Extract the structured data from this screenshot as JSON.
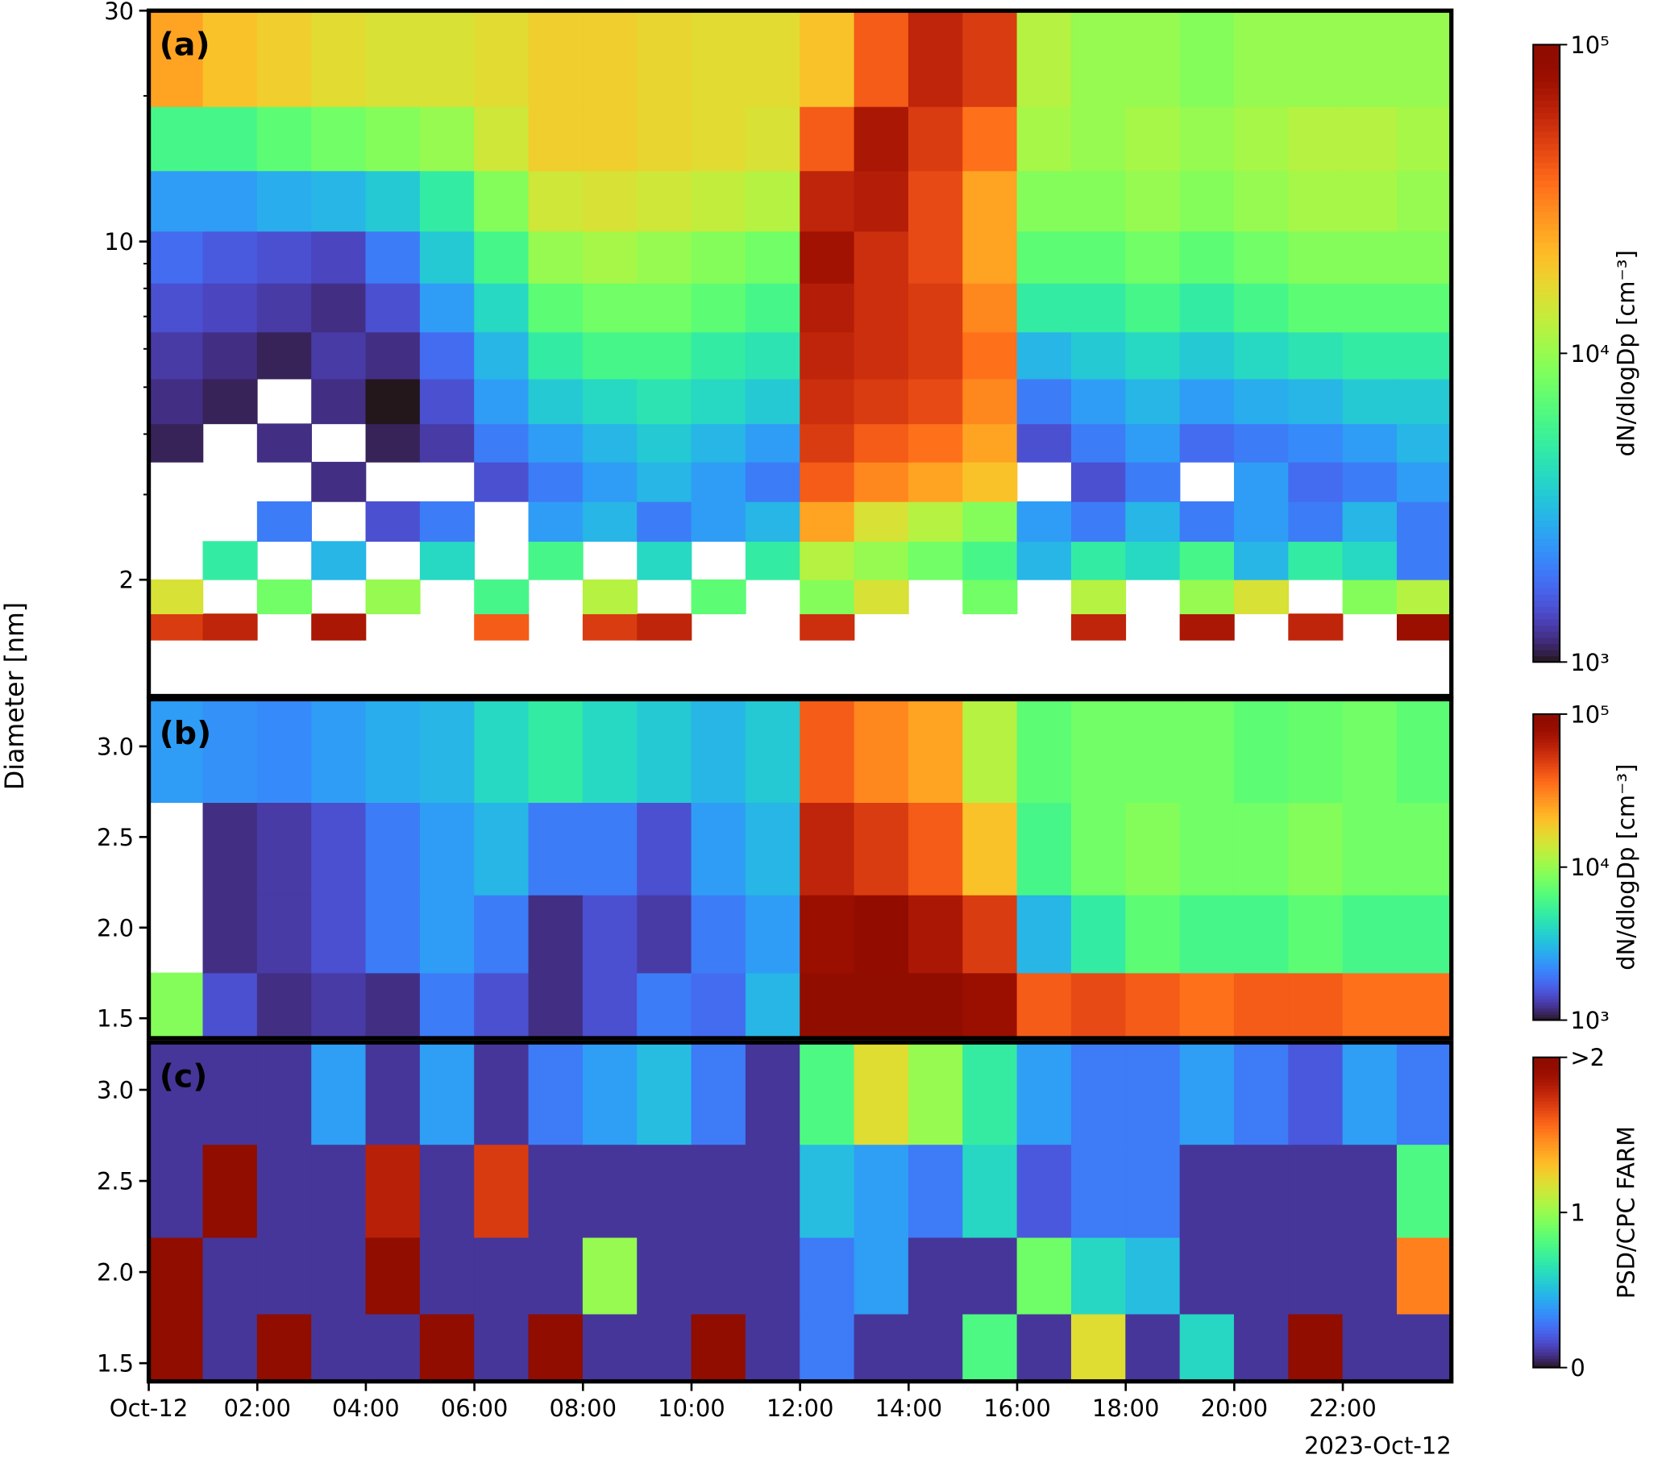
{
  "chart_data": [
    {
      "type": "heatmap",
      "panel_label": "(a)",
      "ylabel": "Diameter [nm]",
      "yscale": "log",
      "colormap": "turbo",
      "xlim": [
        0,
        24
      ],
      "ylim": [
        1.15,
        30
      ],
      "yticks": [
        2,
        10,
        30
      ],
      "yminor": [
        3,
        4,
        5,
        6,
        7,
        8,
        9,
        20
      ],
      "x_edges": [
        0,
        1,
        2,
        3,
        4,
        5,
        6,
        7,
        8,
        9,
        10,
        11,
        12,
        13,
        14,
        15,
        16,
        17,
        18,
        19,
        20,
        21,
        22,
        23,
        24
      ],
      "y_edges": [
        1.5,
        1.7,
        2,
        2.4,
        2.9,
        3.5,
        4.2,
        5.2,
        6.5,
        8.2,
        10.5,
        14,
        19,
        30
      ],
      "values": [
        [
          50000,
          60000,
          null,
          70000,
          null,
          null,
          40000,
          null,
          50000,
          60000,
          null,
          null,
          55000,
          null,
          null,
          null,
          null,
          60000,
          null,
          70000,
          null,
          60000,
          null,
          80000
        ],
        [
          15000,
          null,
          8000,
          null,
          10000,
          null,
          6000,
          null,
          12000,
          null,
          7000,
          null,
          9000,
          15000,
          null,
          8000,
          null,
          12000,
          null,
          10000,
          15000,
          null,
          9000,
          12000
        ],
        [
          null,
          5000,
          null,
          3000,
          null,
          4000,
          null,
          6000,
          null,
          4000,
          null,
          5000,
          12000,
          10000,
          8000,
          6000,
          3000,
          5000,
          4000,
          6000,
          3000,
          5000,
          4000,
          2000
        ],
        [
          null,
          null,
          2000,
          null,
          1500,
          2000,
          null,
          2500,
          3000,
          2000,
          2500,
          3000,
          25000,
          15000,
          12000,
          9000,
          2500,
          2000,
          3000,
          2000,
          2500,
          2000,
          3000,
          2000
        ],
        [
          null,
          null,
          null,
          1200,
          null,
          null,
          1500,
          2000,
          2500,
          3000,
          2500,
          2000,
          40000,
          30000,
          25000,
          20000,
          null,
          1500,
          2000,
          null,
          2500,
          1800,
          2000,
          2500
        ],
        [
          1100,
          null,
          1200,
          null,
          1100,
          1300,
          2000,
          2500,
          3000,
          3500,
          3000,
          2500,
          50000,
          40000,
          35000,
          25000,
          1500,
          2000,
          2500,
          1800,
          2000,
          2200,
          2500,
          3000
        ],
        [
          1200,
          1100,
          null,
          1200,
          1000,
          1500,
          2500,
          3500,
          4000,
          4500,
          4000,
          3500,
          55000,
          50000,
          45000,
          30000,
          2000,
          2500,
          3000,
          2500,
          2800,
          3000,
          3500,
          3500
        ],
        [
          1300,
          1200,
          1100,
          1300,
          1200,
          1800,
          3000,
          5000,
          6000,
          6000,
          5000,
          4500,
          60000,
          55000,
          50000,
          35000,
          3000,
          3500,
          4000,
          3500,
          4000,
          4500,
          5000,
          5000
        ],
        [
          1500,
          1400,
          1300,
          1200,
          1500,
          2500,
          4000,
          7000,
          8000,
          8000,
          7000,
          6000,
          65000,
          55000,
          50000,
          30000,
          5000,
          5000,
          6000,
          5000,
          6000,
          7000,
          7000,
          7000
        ],
        [
          1800,
          1600,
          1500,
          1400,
          2000,
          3500,
          6000,
          10000,
          11000,
          10000,
          9000,
          8000,
          75000,
          55000,
          45000,
          25000,
          7000,
          7000,
          8000,
          7000,
          8000,
          9000,
          9000,
          9000
        ],
        [
          2500,
          2500,
          2800,
          3000,
          3500,
          5000,
          9000,
          14000,
          15000,
          14000,
          13000,
          12000,
          60000,
          65000,
          45000,
          25000,
          9000,
          9000,
          10000,
          9000,
          10000,
          11000,
          11000,
          10000
        ],
        [
          6000,
          6000,
          7000,
          8000,
          9000,
          10000,
          14000,
          18000,
          18000,
          17000,
          16000,
          15000,
          40000,
          70000,
          50000,
          35000,
          11000,
          10000,
          11000,
          10000,
          11000,
          12000,
          12000,
          11000
        ],
        [
          25000,
          20000,
          18000,
          16000,
          15000,
          15000,
          16000,
          18000,
          18000,
          17000,
          16000,
          16000,
          20000,
          40000,
          60000,
          50000,
          12000,
          10000,
          10000,
          9000,
          10000,
          10000,
          10000,
          10000
        ]
      ],
      "colorbar": {
        "label": "dN/dlogDp [cm⁻³]",
        "log": true,
        "lim": [
          1000,
          100000
        ],
        "ticks": [
          {
            "value": 1000,
            "label": "10³"
          },
          {
            "value": 10000,
            "label": "10⁴"
          },
          {
            "value": 100000,
            "label": "10⁵"
          }
        ]
      }
    },
    {
      "type": "heatmap",
      "panel_label": "(b)",
      "yscale": "linear",
      "colormap": "turbo",
      "xlim": [
        0,
        24
      ],
      "ylim": [
        1.39,
        3.26
      ],
      "yticks": [
        1.5,
        {
          "value": 2,
          "label": "2.0"
        },
        2.5,
        {
          "value": 3,
          "label": "3.0"
        }
      ],
      "x_edges": [
        0,
        1,
        2,
        3,
        4,
        5,
        6,
        7,
        8,
        9,
        10,
        11,
        12,
        13,
        14,
        15,
        16,
        17,
        18,
        19,
        20,
        21,
        22,
        23,
        24
      ],
      "y_edges": [
        1.39,
        1.75,
        2.18,
        2.69,
        3.26
      ],
      "values": [
        [
          9000,
          1500,
          1200,
          1300,
          1200,
          2000,
          1500,
          1200,
          1500,
          2000,
          1800,
          3000,
          100000,
          100000,
          100000,
          80000,
          40000,
          45000,
          40000,
          35000,
          40000,
          40000,
          35000,
          35000
        ],
        [
          null,
          1200,
          1300,
          1500,
          2000,
          2500,
          2000,
          1200,
          1500,
          1300,
          2000,
          2500,
          80000,
          90000,
          70000,
          50000,
          3000,
          5000,
          7000,
          6000,
          6000,
          7000,
          6000,
          6000
        ],
        [
          null,
          1200,
          1300,
          1500,
          2000,
          2500,
          3000,
          2000,
          2000,
          1500,
          2500,
          3000,
          60000,
          50000,
          40000,
          20000,
          6000,
          8000,
          9000,
          8000,
          8000,
          9000,
          8000,
          8000
        ],
        [
          2500,
          2300,
          2200,
          2500,
          2800,
          3000,
          4000,
          5000,
          4000,
          3500,
          3000,
          3500,
          40000,
          30000,
          25000,
          12000,
          7000,
          8000,
          8000,
          8000,
          7000,
          7500,
          8000,
          7000
        ]
      ],
      "colorbar": {
        "label": "dN/dlogDp [cm⁻³]",
        "log": true,
        "lim": [
          1000,
          100000
        ],
        "ticks": [
          {
            "value": 1000,
            "label": "10³"
          },
          {
            "value": 10000,
            "label": "10⁴"
          },
          {
            "value": 100000,
            "label": "10⁵"
          }
        ]
      }
    },
    {
      "type": "heatmap",
      "panel_label": "(c)",
      "yscale": "linear",
      "colormap": "turbo",
      "xlim": [
        0,
        24
      ],
      "ylim": [
        1.4,
        3.26
      ],
      "yticks": [
        1.5,
        {
          "value": 2,
          "label": "2.0"
        },
        2.5,
        {
          "value": 3,
          "label": "3.0"
        }
      ],
      "xticks": [
        {
          "value": 0,
          "label": "Oct-12"
        },
        {
          "value": 2,
          "label": "02:00"
        },
        {
          "value": 4,
          "label": "04:00"
        },
        {
          "value": 6,
          "label": "06:00"
        },
        {
          "value": 8,
          "label": "08:00"
        },
        {
          "value": 10,
          "label": "10:00"
        },
        {
          "value": 12,
          "label": "12:00"
        },
        {
          "value": 14,
          "label": "14:00"
        },
        {
          "value": 16,
          "label": "16:00"
        },
        {
          "value": 18,
          "label": "18:00"
        },
        {
          "value": 20,
          "label": "20:00"
        },
        {
          "value": 22,
          "label": "22:00"
        }
      ],
      "x_offset_label": "2023-Oct-12",
      "x_edges": [
        0,
        1,
        2,
        3,
        4,
        5,
        6,
        7,
        8,
        9,
        10,
        11,
        12,
        13,
        14,
        15,
        16,
        17,
        18,
        19,
        20,
        21,
        22,
        23,
        24
      ],
      "y_edges": [
        1.4,
        1.77,
        2.19,
        2.7,
        3.26
      ],
      "values": [
        [
          2.5,
          0.1,
          2.5,
          0.1,
          0.1,
          2.5,
          0.1,
          2.2,
          0.1,
          0.1,
          2.5,
          0.1,
          0.3,
          0.1,
          0.1,
          0.8,
          0.1,
          1.2,
          0.1,
          0.6,
          0.1,
          2.5,
          0.1,
          0.1
        ],
        [
          2.5,
          0.1,
          0.1,
          0.1,
          2.5,
          0.1,
          0.1,
          0.1,
          1.0,
          0.1,
          0.1,
          0.1,
          0.3,
          0.4,
          0.1,
          0.1,
          0.9,
          0.6,
          0.5,
          0.1,
          0.1,
          0.1,
          0.1,
          1.5
        ],
        [
          0.1,
          2.5,
          0.1,
          0.1,
          1.8,
          0.1,
          1.7,
          0.1,
          0.1,
          0.1,
          0.1,
          0.1,
          0.5,
          0.4,
          0.3,
          0.6,
          0.2,
          0.3,
          0.3,
          0.1,
          0.1,
          0.1,
          0.1,
          0.8
        ],
        [
          0.1,
          0.1,
          0.1,
          0.4,
          0.1,
          0.4,
          0.1,
          0.3,
          0.4,
          0.5,
          0.3,
          0.1,
          0.8,
          1.2,
          1.0,
          0.7,
          0.4,
          0.3,
          0.3,
          0.4,
          0.3,
          0.2,
          0.4,
          0.3
        ]
      ],
      "colorbar": {
        "label": "PSD/CPC FARM",
        "log": false,
        "lim": [
          0,
          2
        ],
        "ticks": [
          0,
          1,
          {
            "value": 2,
            "label": ">2"
          }
        ]
      }
    }
  ]
}
